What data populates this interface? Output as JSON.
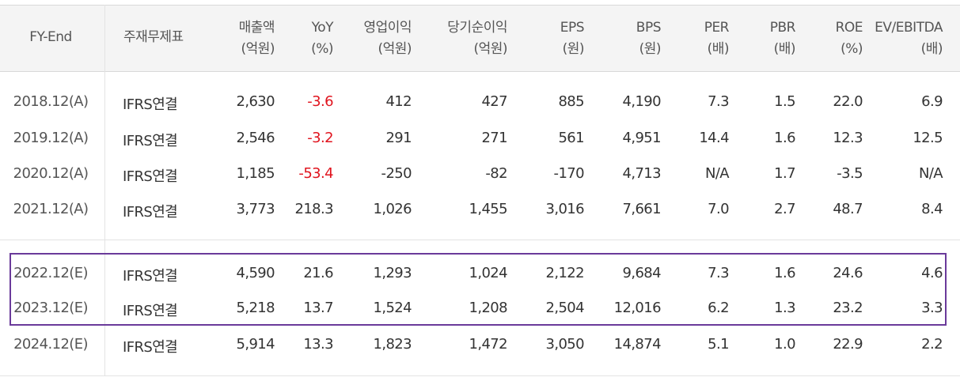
{
  "table": {
    "headers": [
      {
        "line1": "FY-End",
        "line2": ""
      },
      {
        "line1": "주재무제표",
        "line2": ""
      },
      {
        "line1": "매출액",
        "line2": "(억원)"
      },
      {
        "line1": "YoY",
        "line2": "(%)"
      },
      {
        "line1": "영업이익",
        "line2": "(억원)"
      },
      {
        "line1": "당기순이익",
        "line2": "(억원)"
      },
      {
        "line1": "EPS",
        "line2": "(원)"
      },
      {
        "line1": "BPS",
        "line2": "(원)"
      },
      {
        "line1": "PER",
        "line2": "(배)"
      },
      {
        "line1": "PBR",
        "line2": "(배)"
      },
      {
        "line1": "ROE",
        "line2": "(%)"
      },
      {
        "line1": "EV/EBITDA",
        "line2": "(배)"
      }
    ],
    "rows": [
      [
        "2018.12(A)",
        "IFRS연결",
        "2,630",
        "-3.6",
        "412",
        "427",
        "885",
        "4,190",
        "7.3",
        "1.5",
        "22.0",
        "6.9"
      ],
      [
        "2019.12(A)",
        "IFRS연결",
        "2,546",
        "-3.2",
        "291",
        "271",
        "561",
        "4,951",
        "14.4",
        "1.6",
        "12.3",
        "12.5"
      ],
      [
        "2020.12(A)",
        "IFRS연결",
        "1,185",
        "-53.4",
        "-250",
        "-82",
        "-170",
        "4,713",
        "N/A",
        "1.7",
        "-3.5",
        "N/A"
      ],
      [
        "2021.12(A)",
        "IFRS연결",
        "3,773",
        "218.3",
        "1,026",
        "1,455",
        "3,016",
        "7,661",
        "7.0",
        "2.7",
        "48.7",
        "8.4"
      ],
      [
        "2022.12(E)",
        "IFRS연결",
        "4,590",
        "21.6",
        "1,293",
        "1,024",
        "2,122",
        "9,684",
        "7.3",
        "1.6",
        "24.6",
        "4.6"
      ],
      [
        "2023.12(E)",
        "IFRS연결",
        "5,218",
        "13.7",
        "1,524",
        "1,208",
        "2,504",
        "12,016",
        "6.2",
        "1.3",
        "23.2",
        "3.3"
      ],
      [
        "2024.12(E)",
        "IFRS연결",
        "5,914",
        "13.3",
        "1,823",
        "1,472",
        "3,050",
        "14,874",
        "5.1",
        "1.0",
        "22.9",
        "2.2"
      ]
    ],
    "negative_color": "#e0141e",
    "highlight_color": "#6a3a9a"
  }
}
